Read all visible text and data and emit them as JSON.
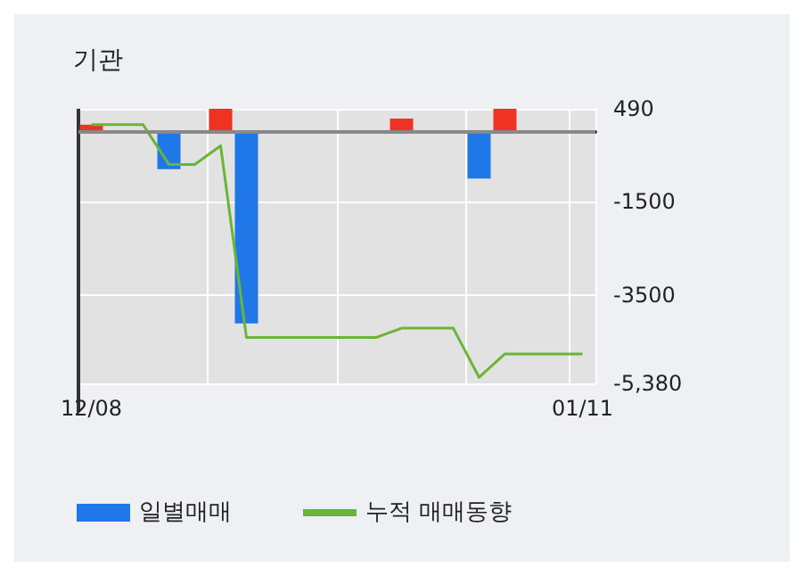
{
  "chart_data": {
    "type": "bar",
    "title": "기관",
    "categories": [
      "12/08",
      null,
      null,
      null,
      null,
      null,
      null,
      null,
      null,
      null,
      null,
      null,
      null,
      null,
      null,
      null,
      null,
      null,
      null,
      "01/11"
    ],
    "series": [
      {
        "name": "일별매매",
        "color": "#1f77e8",
        "values": [
          150,
          null,
          null,
          -800,
          null,
          490,
          -4100,
          null,
          null,
          null,
          null,
          null,
          280,
          null,
          null,
          -1000,
          490,
          null,
          null,
          null
        ],
        "colors": [
          "#ee3322",
          null,
          null,
          "#1f77e8",
          null,
          "#ee3322",
          "#1f77e8",
          null,
          null,
          null,
          null,
          null,
          "#ee3322",
          null,
          null,
          "#1f77e8",
          "#ee3322",
          null,
          null,
          null
        ]
      },
      {
        "name": "누적 매매동향",
        "type": "line",
        "color": "#6ab535",
        "values": [
          150,
          150,
          150,
          -700,
          -700,
          -300,
          -4400,
          -4400,
          -4400,
          -4400,
          -4400,
          -4400,
          -4200,
          -4200,
          -4200,
          -5250,
          -4750,
          -4750,
          -4750,
          -4750
        ]
      }
    ],
    "ylim": [
      -5380,
      490
    ],
    "yticks": [
      490,
      -1500,
      -3500,
      {
        "value": -5380,
        "label": "-5,380"
      }
    ],
    "ref_lines": [
      {
        "axis": "y",
        "value": 0,
        "color": "#888888"
      }
    ],
    "grid": true,
    "legend": "bottom",
    "marker": "none"
  }
}
